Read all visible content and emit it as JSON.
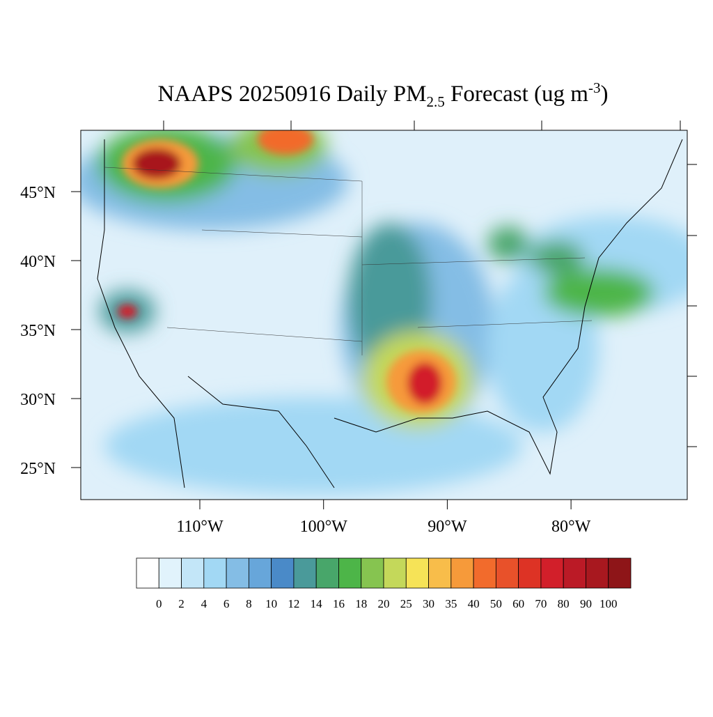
{
  "title": {
    "main": "NAAPS 20250916 Daily PM",
    "sub": "2.5",
    "rest": " Forecast (ug m",
    "sup": "-3",
    "end": ")"
  },
  "lat_ticks": [
    {
      "value": 45,
      "label": "45°N"
    },
    {
      "value": 40,
      "label": "40°N"
    },
    {
      "value": 35,
      "label": "35°N"
    },
    {
      "value": 30,
      "label": "30°N"
    },
    {
      "value": 25,
      "label": "25°N"
    }
  ],
  "lon_ticks": [
    {
      "value": -110,
      "label": "110°W"
    },
    {
      "value": -100,
      "label": "100°W"
    },
    {
      "value": -90,
      "label": "90°W"
    },
    {
      "value": -80,
      "label": "80°W"
    }
  ],
  "colorbar": {
    "levels": [
      0,
      2,
      4,
      6,
      8,
      10,
      12,
      14,
      16,
      18,
      20,
      25,
      30,
      35,
      40,
      50,
      60,
      70,
      80,
      90,
      100
    ],
    "colors": [
      "#ffffff",
      "#e1f3fc",
      "#c3e6f8",
      "#a2d8f4",
      "#84bde5",
      "#67a6da",
      "#4a8ac8",
      "#4a9a9a",
      "#48a66a",
      "#4db548",
      "#86c450",
      "#c4d85a",
      "#f6e357",
      "#f8bd4a",
      "#f69a3a",
      "#f26b2c",
      "#e8512a",
      "#dd3325",
      "#d21f2a",
      "#bb1a26",
      "#a8181f",
      "#8e1518"
    ]
  }
}
